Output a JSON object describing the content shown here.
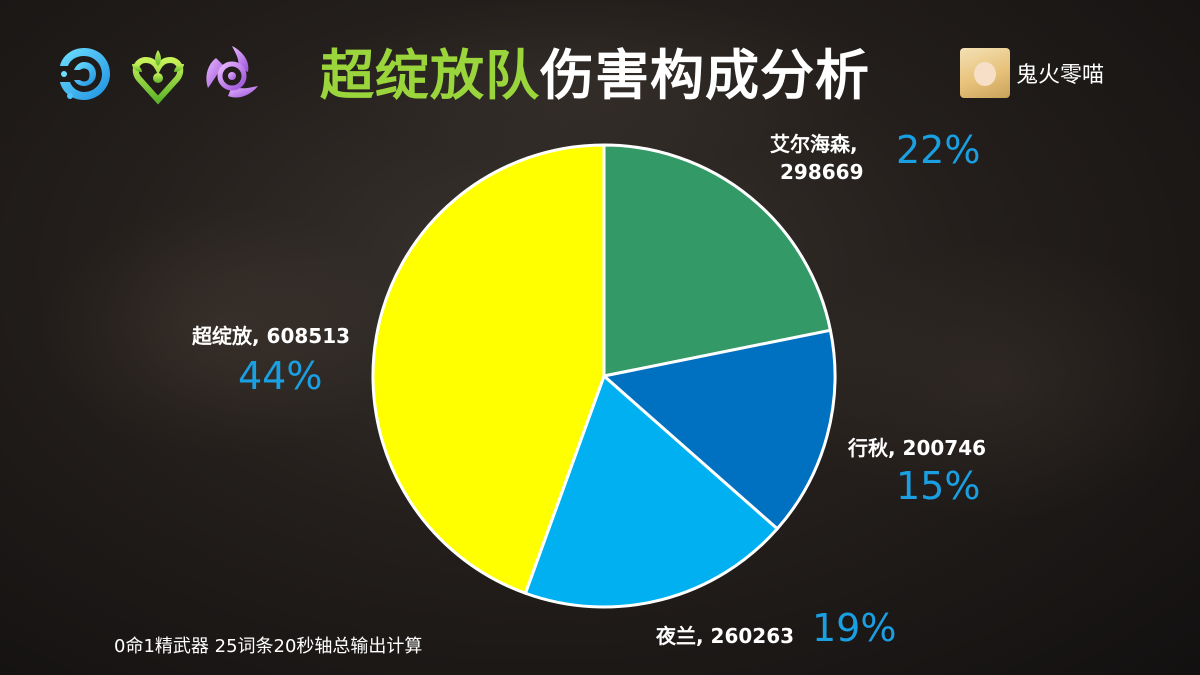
{
  "header": {
    "title_accent": "超绽放队",
    "title_rest": "伤害构成分析",
    "icons": [
      "hydro-element-icon",
      "dendro-element-icon",
      "electro-element-icon"
    ],
    "author": "鬼火零喵"
  },
  "footnote": "0命1精武器 25词条20秒轴总输出计算",
  "chart_data": {
    "type": "pie",
    "title": "超绽放队伤害构成分析",
    "slices": [
      {
        "name": "艾尔海森",
        "value": 298669,
        "percent": "22%",
        "color": "#339966",
        "label": "艾尔海森,"
      },
      {
        "name": "行秋",
        "value": 200746,
        "percent": "15%",
        "color": "#0070c0",
        "label": "行秋, 200746"
      },
      {
        "name": "夜兰",
        "value": 260263,
        "percent": "19%",
        "color": "#00b0f0",
        "label": "夜兰, 260263"
      },
      {
        "name": "超绽放",
        "value": 608513,
        "percent": "44%",
        "color": "#ffff00",
        "label": "超绽放, 608513"
      }
    ],
    "alhaitham_value_line": "298669",
    "start_angle_deg": 0,
    "direction": "clockwise"
  }
}
